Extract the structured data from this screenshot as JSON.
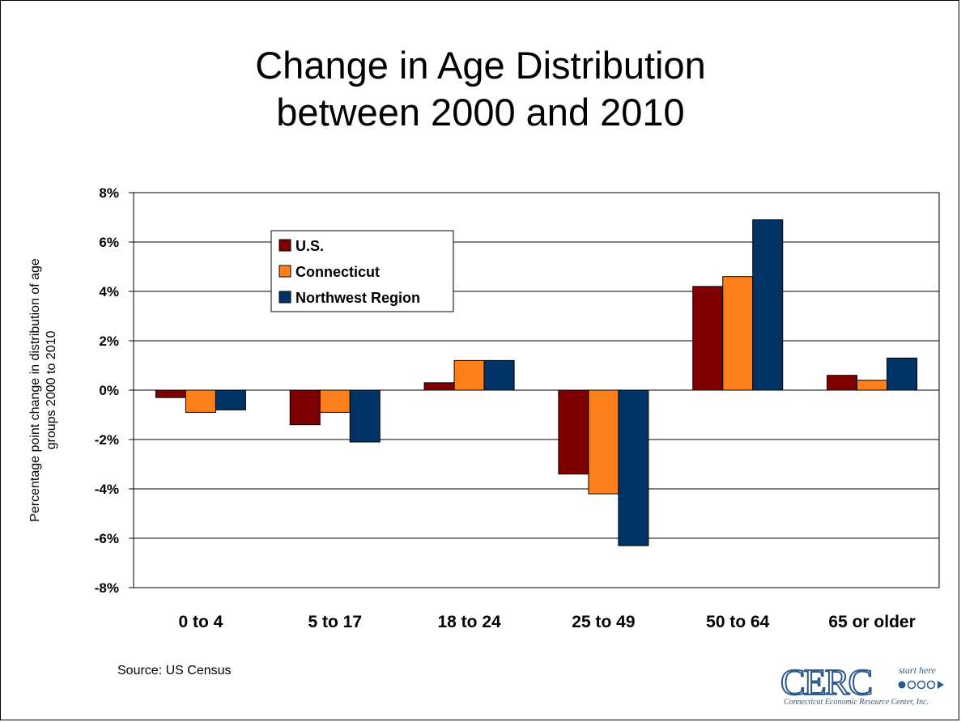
{
  "title_line1": "Change in Age Distribution",
  "title_line2": "between 2000 and 2010",
  "source": "Source:  US Census",
  "logo": {
    "brand": "CERC",
    "tagline": "start here",
    "subtitle": "Connecticut Economic Resource Center, Inc."
  },
  "colors": {
    "us": "#7f0000",
    "connecticut": "#ff7f1a",
    "northwest": "#003366"
  },
  "chart_data": {
    "type": "bar",
    "title": "Change in Age Distribution between 2000 and 2010",
    "xlabel": "",
    "ylabel": "Percentage point change in distribution of age groups 2000 to 2010",
    "categories": [
      "0 to 4",
      "5 to 17",
      "18 to 24",
      "25 to 49",
      "50 to 64",
      "65 or older"
    ],
    "series": [
      {
        "name": "U.S.",
        "values": [
          -0.3,
          -1.4,
          0.3,
          -3.4,
          4.2,
          0.6
        ]
      },
      {
        "name": "Connecticut",
        "values": [
          -0.9,
          -0.9,
          1.2,
          -4.2,
          4.6,
          0.4
        ]
      },
      {
        "name": "Northwest Region",
        "values": [
          -0.8,
          -2.1,
          1.2,
          -6.3,
          6.9,
          1.3
        ]
      }
    ],
    "ylim": [
      -8,
      8
    ],
    "yticks": [
      8,
      6,
      4,
      2,
      0,
      -2,
      -4,
      -6,
      -8
    ],
    "ytick_labels": [
      "8%",
      "6%",
      "4%",
      "2%",
      "0%",
      "-2%",
      "-4%",
      "-6%",
      "-8%"
    ],
    "grid": true,
    "legend_position": "upper-left inside plot"
  }
}
